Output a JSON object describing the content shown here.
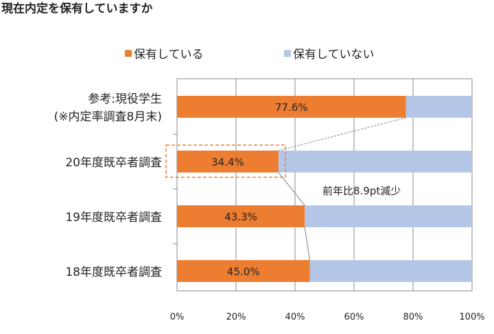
{
  "chart_data": {
    "type": "bar",
    "orientation": "horizontal",
    "stacked": true,
    "title": "現在内定を保有していますか",
    "categories": [
      [
        "参考:現役学生",
        "(※内定率調査8月末)"
      ],
      [
        "20年度既卒者調査"
      ],
      [
        "19年度既卒者調査"
      ],
      [
        "18年度既卒者調査"
      ]
    ],
    "series": [
      {
        "name": "保有している",
        "color": "#ED7D31",
        "values": [
          77.6,
          34.4,
          43.3,
          45.0
        ]
      },
      {
        "name": "保有していない",
        "color": "#B4C7E7",
        "values": [
          22.4,
          65.6,
          56.7,
          55.0
        ]
      }
    ],
    "data_labels": [
      "77.6%",
      "34.4%",
      "43.3%",
      "45.0%"
    ],
    "x_ticks": [
      "0%",
      "20%",
      "40%",
      "60%",
      "80%",
      "100%"
    ],
    "xlim": [
      0,
      100
    ],
    "grid": true,
    "legend": "top",
    "annotation": "前年比8.9pt減少",
    "highlight_category": 1
  }
}
